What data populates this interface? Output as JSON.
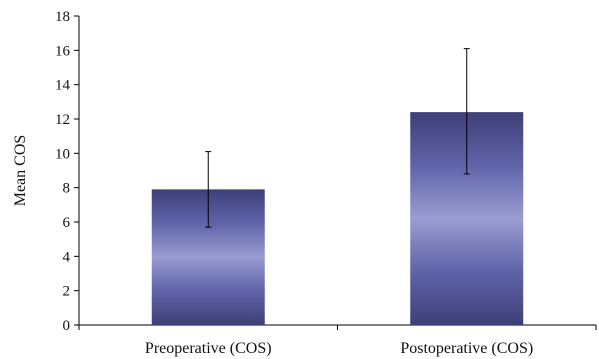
{
  "chart_data": {
    "type": "bar",
    "title": "",
    "xlabel": "",
    "ylabel": "Mean COS",
    "ylim": [
      0,
      18
    ],
    "yticks": [
      0,
      2,
      4,
      6,
      8,
      10,
      12,
      14,
      16,
      18
    ],
    "grid": false,
    "legend": "none",
    "categories": [
      "Preoperative (COS)",
      "Postoperative (COS)"
    ],
    "series": [
      {
        "values": [
          7.9,
          12.4
        ],
        "error_low": [
          5.7,
          8.8
        ],
        "error_high": [
          10.1,
          16.1
        ]
      }
    ],
    "colors": {
      "bar_dark": "#3e3f78",
      "bar_mid": "#6f72b8",
      "bar_light": "#9a9cd2",
      "axis": "#000000"
    }
  }
}
